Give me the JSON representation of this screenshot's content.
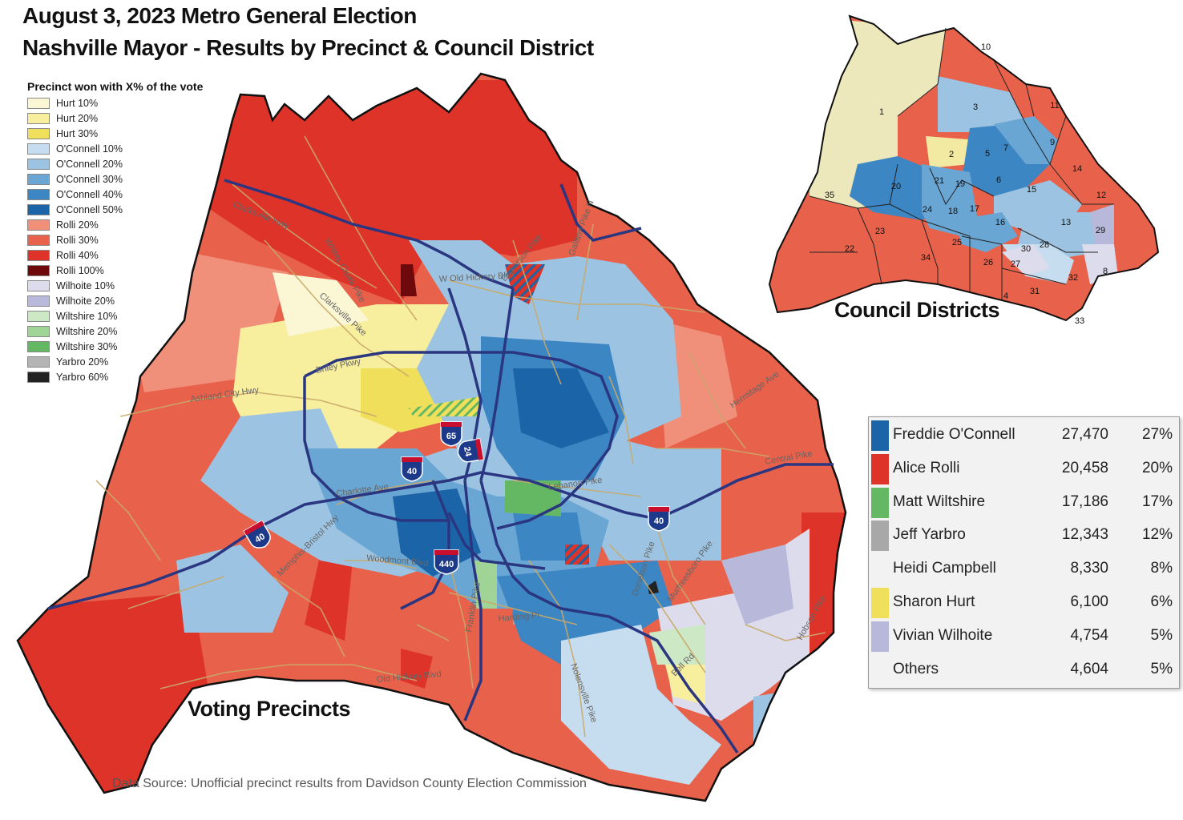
{
  "title": {
    "line1": "August 3, 2023 Metro General Election",
    "line2": "Nashville Mayor - Results by Precinct & Council District"
  },
  "legend": {
    "heading": "Precinct won with X% of the vote",
    "items": [
      {
        "label": "Hurt 10%",
        "color": "#fbf6d4"
      },
      {
        "label": "Hurt 20%",
        "color": "#f7ee9e"
      },
      {
        "label": "Hurt 30%",
        "color": "#f0df5a"
      },
      {
        "label": "O'Connell 10%",
        "color": "#c6ddef"
      },
      {
        "label": "O'Connell 20%",
        "color": "#9cc4e2"
      },
      {
        "label": "O'Connell 30%",
        "color": "#6aa6d4"
      },
      {
        "label": "O'Connell 40%",
        "color": "#3c86c4"
      },
      {
        "label": "O'Connell 50%",
        "color": "#1c64a8"
      },
      {
        "label": "Rolli 20%",
        "color": "#f0907a"
      },
      {
        "label": "Rolli 30%",
        "color": "#e8614a"
      },
      {
        "label": "Rolli 40%",
        "color": "#dd3328"
      },
      {
        "label": "Rolli 100%",
        "color": "#6e0a0c"
      },
      {
        "label": "Wilhoite 10%",
        "color": "#dcdcec"
      },
      {
        "label": "Wilhoite 20%",
        "color": "#b8b8da"
      },
      {
        "label": "Wiltshire 10%",
        "color": "#cce8c4"
      },
      {
        "label": "Wiltshire 20%",
        "color": "#a0d496"
      },
      {
        "label": "Wiltshire 30%",
        "color": "#64b864"
      },
      {
        "label": "Yarbro 20%",
        "color": "#b4b4b4"
      },
      {
        "label": "Yarbro 60%",
        "color": "#222222"
      }
    ]
  },
  "roads": [
    "Clarksville Hwy",
    "Whites Creek Pike",
    "Clarksville Pike",
    "Briley Pkwy",
    "W Old Hickory Blvd",
    "Dickerson Pike",
    "Gallatin Pike N",
    "Ashland City Hwy",
    "Hermitage Ave",
    "Central Pike",
    "Lebanon Pike",
    "Charlotte Ave",
    "Woodmont Blvd",
    "Harding Pl",
    "Memphis-Bristol Hwy",
    "Old Hickory Blvd",
    "Hobson Pike",
    "Bell Rd",
    "Nolensville Pike",
    "Murfreesboro Pike",
    "Donelson Pike",
    "Franklin Pike"
  ],
  "shields": [
    "65",
    "24",
    "40",
    "40",
    "40",
    "440"
  ],
  "council_districts": [
    "1",
    "2",
    "3",
    "4",
    "5",
    "6",
    "7",
    "8",
    "9",
    "10",
    "11",
    "12",
    "13",
    "14",
    "15",
    "16",
    "17",
    "18",
    "19",
    "20",
    "21",
    "22",
    "23",
    "24",
    "25",
    "26",
    "27",
    "28",
    "29",
    "30",
    "31",
    "32",
    "33",
    "34",
    "35"
  ],
  "map_labels": {
    "precincts": "Voting Precincts",
    "council": "Council Districts"
  },
  "results": [
    {
      "name": "Freddie O'Connell",
      "votes": "27,470",
      "pct": "27%",
      "color": "#1c64a8"
    },
    {
      "name": "Alice Rolli",
      "votes": "20,458",
      "pct": "20%",
      "color": "#dd3328"
    },
    {
      "name": "Matt Wiltshire",
      "votes": "17,186",
      "pct": "17%",
      "color": "#64b864"
    },
    {
      "name": "Jeff Yarbro",
      "votes": "12,343",
      "pct": "12%",
      "color": "#a8a8a8"
    },
    {
      "name": "Heidi Campbell",
      "votes": "8,330",
      "pct": "8%",
      "color": ""
    },
    {
      "name": "Sharon Hurt",
      "votes": "6,100",
      "pct": "6%",
      "color": "#f0df5a"
    },
    {
      "name": "Vivian Wilhoite",
      "votes": "4,754",
      "pct": "5%",
      "color": "#b8b8da"
    },
    {
      "name": "Others",
      "votes": "4,604",
      "pct": "5%",
      "color": ""
    }
  ],
  "source": "Data Source: Unofficial precinct results from Davidson County Election Commission"
}
